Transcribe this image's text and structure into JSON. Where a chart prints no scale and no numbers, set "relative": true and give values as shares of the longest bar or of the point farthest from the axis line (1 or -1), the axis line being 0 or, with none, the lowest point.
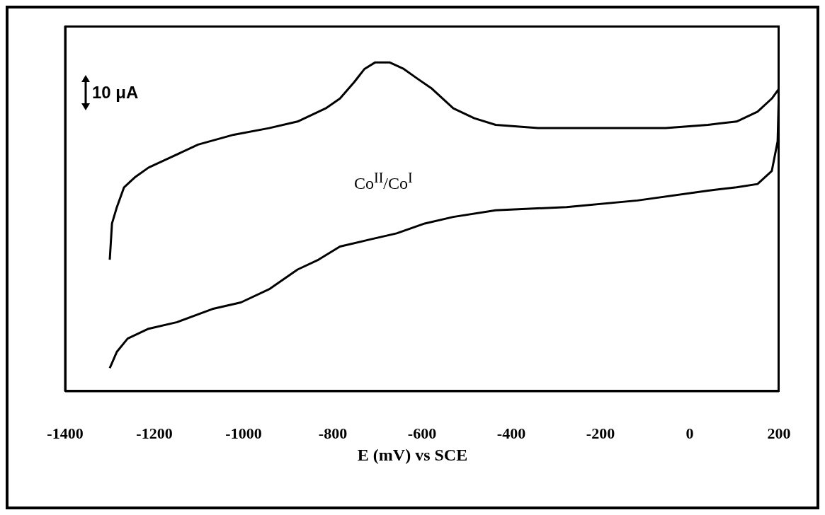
{
  "chart_data": {
    "type": "line",
    "relative": true,
    "xlabel": "E (mV) vs SCE",
    "xlim": [
      -1400,
      200
    ],
    "xticks": [
      -1400,
      -1200,
      -1000,
      -800,
      -600,
      -400,
      -200,
      0,
      200
    ],
    "marker": "none",
    "line_style": "solid",
    "annotations": [
      "10 μA",
      "Co$^{II}$/Co$^{I}$"
    ],
    "series": [
      {
        "color": "#000000",
        "x": [
          -1300,
          -1295,
          -1284,
          -1268,
          -1244,
          -1213,
          -1165,
          -1102,
          -1022,
          -943,
          -879,
          -816,
          -784,
          -752,
          -729,
          -705,
          -673,
          -641,
          -610,
          -578,
          -530,
          -483,
          -435,
          -340,
          -244,
          -149,
          -54,
          41,
          105,
          152,
          184,
          200,
          197,
          184,
          152,
          105,
          41,
          -117,
          -276,
          -435,
          -530,
          -594,
          -657,
          -721,
          -784,
          -832,
          -879,
          -943,
          -1006,
          -1070,
          -1149,
          -1213,
          -1260,
          -1284,
          -1300
        ],
        "values": [
          0.4,
          0.51,
          0.56,
          0.62,
          0.65,
          0.68,
          0.71,
          0.75,
          0.78,
          0.8,
          0.82,
          0.86,
          0.89,
          0.94,
          0.98,
          1.0,
          1.0,
          0.98,
          0.95,
          0.92,
          0.86,
          0.83,
          0.81,
          0.8,
          0.8,
          0.8,
          0.8,
          0.81,
          0.82,
          0.85,
          0.89,
          0.92,
          0.76,
          0.67,
          0.63,
          0.62,
          0.61,
          0.58,
          0.56,
          0.55,
          0.53,
          0.51,
          0.48,
          0.46,
          0.44,
          0.4,
          0.37,
          0.31,
          0.27,
          0.25,
          0.21,
          0.19,
          0.16,
          0.12,
          0.07
        ]
      }
    ]
  }
}
